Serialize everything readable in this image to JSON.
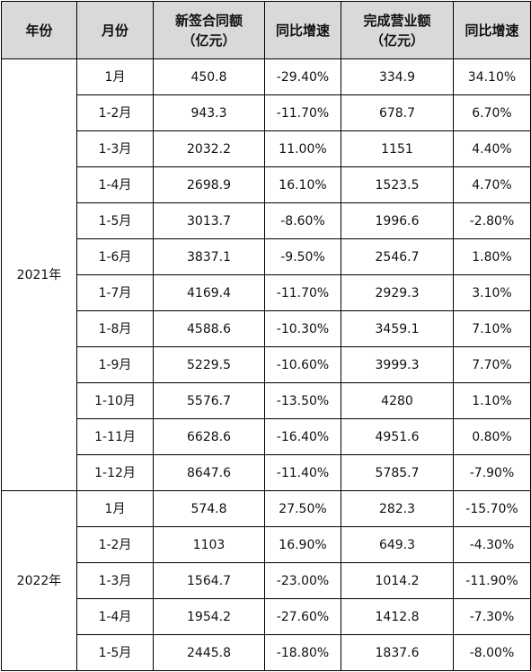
{
  "table": {
    "headers": [
      [
        "年份"
      ],
      [
        "月份"
      ],
      [
        "新签合同额",
        "（亿元）"
      ],
      [
        "同比增速"
      ],
      [
        "完成营业额",
        "（亿元）"
      ],
      [
        "同比增速"
      ]
    ],
    "groups": [
      {
        "year": "2021年",
        "rows": [
          [
            "1月",
            "450.8",
            "-29.40%",
            "334.9",
            "34.10%"
          ],
          [
            "1-2月",
            "943.3",
            "-11.70%",
            "678.7",
            "6.70%"
          ],
          [
            "1-3月",
            "2032.2",
            "11.00%",
            "1151",
            "4.40%"
          ],
          [
            "1-4月",
            "2698.9",
            "16.10%",
            "1523.5",
            "4.70%"
          ],
          [
            "1-5月",
            "3013.7",
            "-8.60%",
            "1996.6",
            "-2.80%"
          ],
          [
            "1-6月",
            "3837.1",
            "-9.50%",
            "2546.7",
            "1.80%"
          ],
          [
            "1-7月",
            "4169.4",
            "-11.70%",
            "2929.3",
            "3.10%"
          ],
          [
            "1-8月",
            "4588.6",
            "-10.30%",
            "3459.1",
            "7.10%"
          ],
          [
            "1-9月",
            "5229.5",
            "-10.60%",
            "3999.3",
            "7.70%"
          ],
          [
            "1-10月",
            "5576.7",
            "-13.50%",
            "4280",
            "1.10%"
          ],
          [
            "1-11月",
            "6628.6",
            "-16.40%",
            "4951.6",
            "0.80%"
          ],
          [
            "1-12月",
            "8647.6",
            "-11.40%",
            "5785.7",
            "-7.90%"
          ]
        ]
      },
      {
        "year": "2022年",
        "rows": [
          [
            "1月",
            "574.8",
            "27.50%",
            "282.3",
            "-15.70%"
          ],
          [
            "1-2月",
            "1103",
            "16.90%",
            "649.3",
            "-4.30%"
          ],
          [
            "1-3月",
            "1564.7",
            "-23.00%",
            "1014.2",
            "-11.90%"
          ],
          [
            "1-4月",
            "1954.2",
            "-27.60%",
            "1412.8",
            "-7.30%"
          ],
          [
            "1-5月",
            "2445.8",
            "-18.80%",
            "1837.6",
            "-8.00%"
          ]
        ]
      }
    ],
    "colors": {
      "header_bg": "#d9d9d9",
      "border": "#000000",
      "text": "#111111"
    }
  }
}
